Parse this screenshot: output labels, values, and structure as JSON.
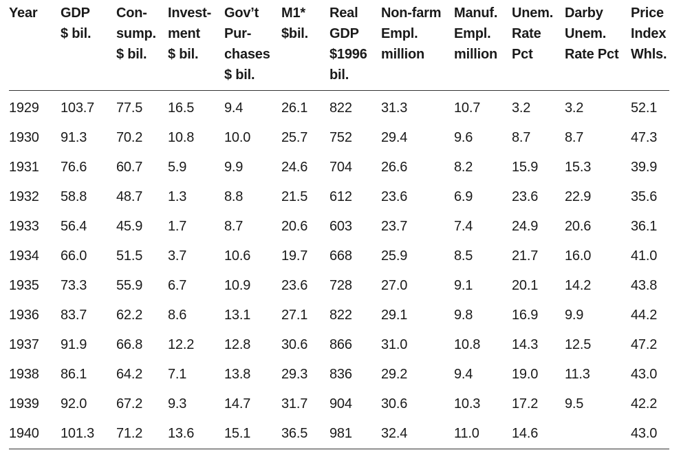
{
  "table": {
    "headers": [
      [
        "Year"
      ],
      [
        "GDP",
        "$ bil."
      ],
      [
        "Con-",
        "sump.",
        "$ bil."
      ],
      [
        "Invest-",
        "ment",
        "$ bil."
      ],
      [
        "Gov’t",
        "Pur-",
        "chases",
        "$ bil."
      ],
      [
        "M1*",
        "$bil."
      ],
      [
        "Real",
        "GDP",
        "$1996",
        "bil."
      ],
      [
        "Non-farm",
        "Empl.",
        "million"
      ],
      [
        "Manuf.",
        "Empl.",
        "million"
      ],
      [
        "Unem.",
        "Rate",
        "Pct"
      ],
      [
        "Darby",
        "Unem.",
        "Rate Pct"
      ],
      [
        "Price",
        "Index",
        "Whls."
      ]
    ],
    "rows": [
      [
        "1929",
        "103.7",
        "77.5",
        "16.5",
        "9.4",
        "26.1",
        "822",
        "31.3",
        "10.7",
        "3.2",
        "3.2",
        "52.1"
      ],
      [
        "1930",
        "91.3",
        "70.2",
        "10.8",
        "10.0",
        "25.7",
        "752",
        "29.4",
        "9.6",
        "8.7",
        "8.7",
        "47.3"
      ],
      [
        "1931",
        "76.6",
        "60.7",
        "5.9",
        "9.9",
        "24.6",
        "704",
        "26.6",
        "8.2",
        "15.9",
        "15.3",
        "39.9"
      ],
      [
        "1932",
        "58.8",
        "48.7",
        "1.3",
        "8.8",
        "21.5",
        "612",
        "23.6",
        "6.9",
        "23.6",
        "22.9",
        "35.6"
      ],
      [
        "1933",
        "56.4",
        "45.9",
        "1.7",
        "8.7",
        "20.6",
        "603",
        "23.7",
        "7.4",
        "24.9",
        "20.6",
        "36.1"
      ],
      [
        "1934",
        "66.0",
        "51.5",
        "3.7",
        "10.6",
        "19.7",
        "668",
        "25.9",
        "8.5",
        "21.7",
        "16.0",
        "41.0"
      ],
      [
        "1935",
        "73.3",
        "55.9",
        "6.7",
        "10.9",
        "23.6",
        "728",
        "27.0",
        "9.1",
        "20.1",
        "14.2",
        "43.8"
      ],
      [
        "1936",
        "83.7",
        "62.2",
        "8.6",
        "13.1",
        "27.1",
        "822",
        "29.1",
        "9.8",
        "16.9",
        "9.9",
        "44.2"
      ],
      [
        "1937",
        "91.9",
        "66.8",
        "12.2",
        "12.8",
        "30.6",
        "866",
        "31.0",
        "10.8",
        "14.3",
        "12.5",
        "47.2"
      ],
      [
        "1938",
        "86.1",
        "64.2",
        "7.1",
        "13.8",
        "29.3",
        "836",
        "29.2",
        "9.4",
        "19.0",
        "11.3",
        "43.0"
      ],
      [
        "1939",
        "92.0",
        "67.2",
        "9.3",
        "14.7",
        "31.7",
        "904",
        "30.6",
        "10.3",
        "17.2",
        "9.5",
        "42.2"
      ],
      [
        "1940",
        "101.3",
        "71.2",
        "13.6",
        "15.1",
        "36.5",
        "981",
        "32.4",
        "11.0",
        "14.6",
        "",
        "43.0"
      ]
    ]
  }
}
